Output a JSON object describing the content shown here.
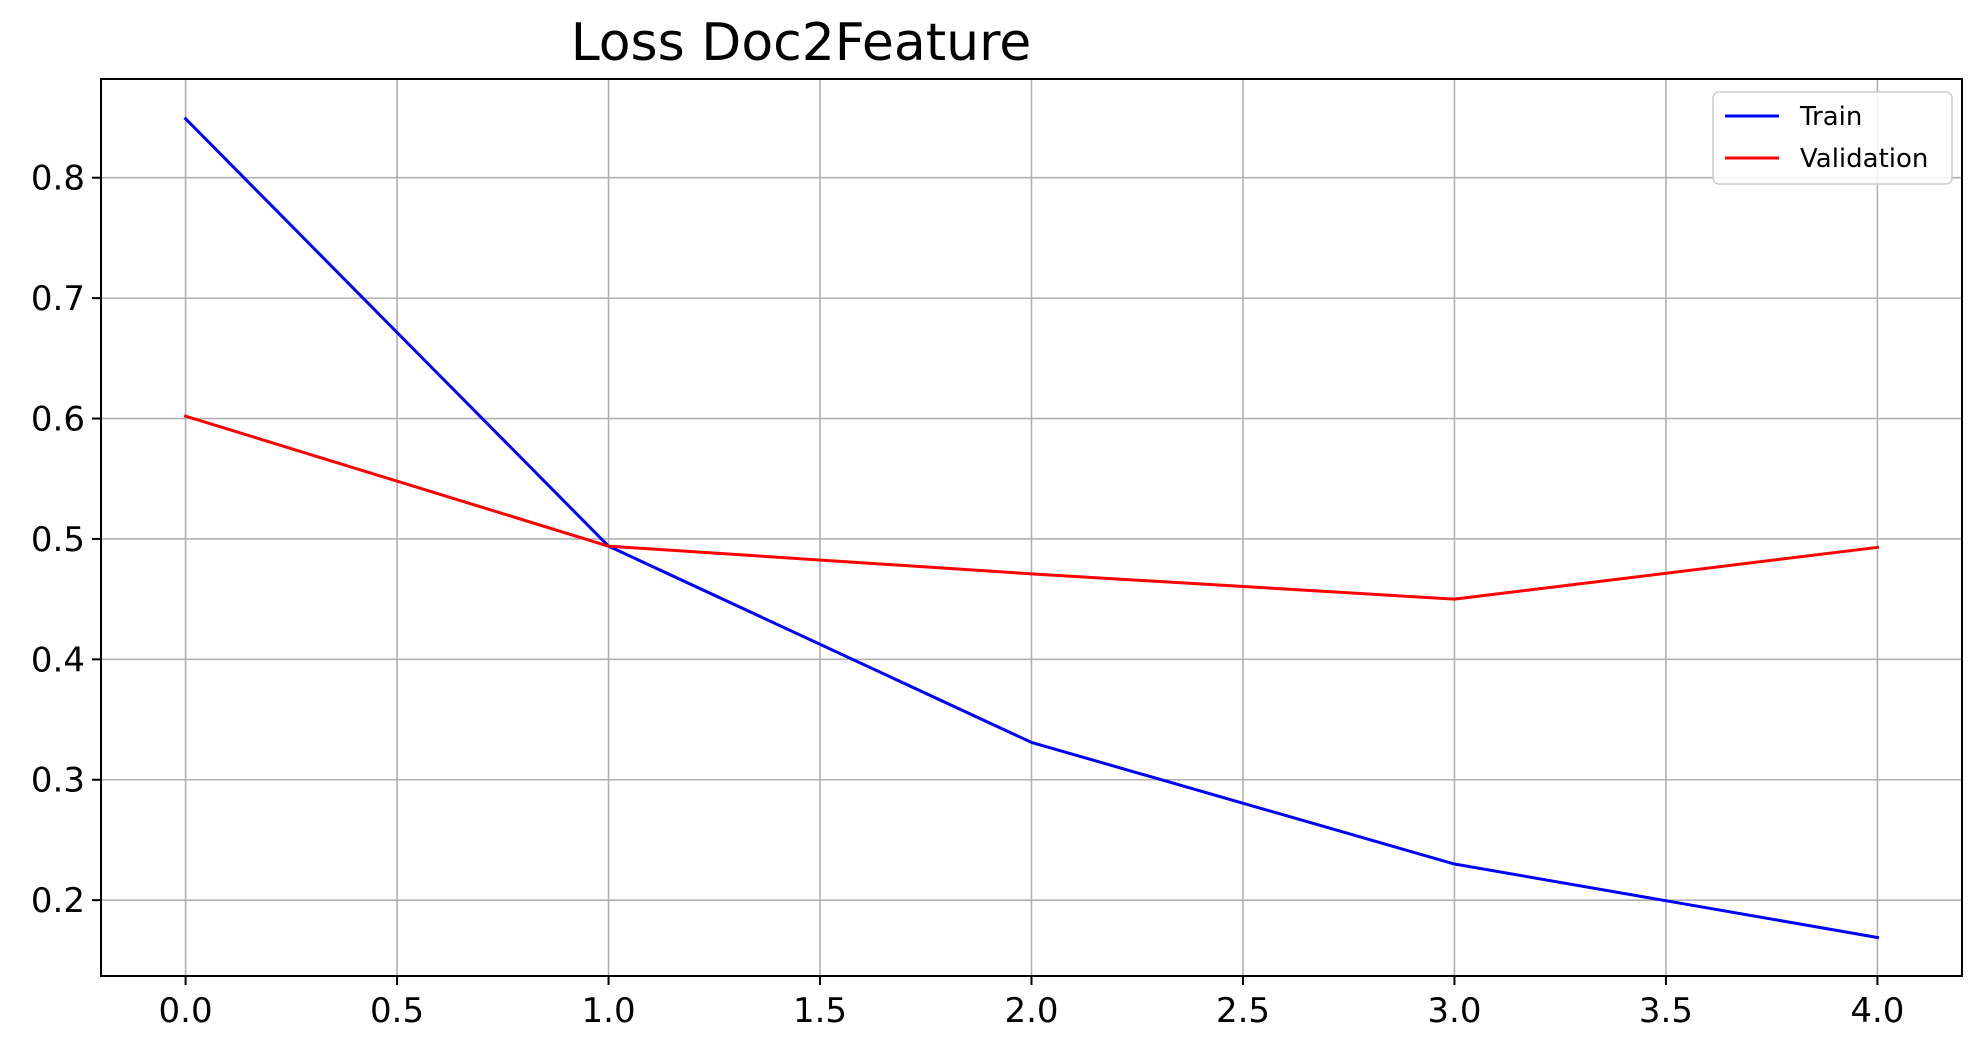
{
  "chart_data": {
    "type": "line",
    "title": "Loss Doc2Feature",
    "xlabel": "",
    "ylabel": "",
    "x": [
      0,
      1,
      2,
      3,
      4
    ],
    "series": [
      {
        "name": "Train",
        "color": "#0000ff",
        "values": [
          0.849,
          0.494,
          0.331,
          0.23,
          0.169
        ]
      },
      {
        "name": "Validation",
        "color": "#ff0000",
        "values": [
          0.602,
          0.494,
          0.471,
          0.45,
          0.493
        ]
      }
    ],
    "xlim": [
      -0.2,
      4.2
    ],
    "ylim": [
      0.137,
      0.882
    ],
    "xticks": [
      0.0,
      0.5,
      1.0,
      1.5,
      2.0,
      2.5,
      3.0,
      3.5,
      4.0
    ],
    "xtick_labels": [
      "0.0",
      "0.5",
      "1.0",
      "1.5",
      "2.0",
      "2.5",
      "3.0",
      "3.5",
      "4.0"
    ],
    "yticks": [
      0.2,
      0.3,
      0.4,
      0.5,
      0.6,
      0.7,
      0.8
    ],
    "ytick_labels": [
      "0.2",
      "0.3",
      "0.4",
      "0.5",
      "0.6",
      "0.7",
      "0.8"
    ],
    "grid": true,
    "legend_position": "top-right"
  }
}
